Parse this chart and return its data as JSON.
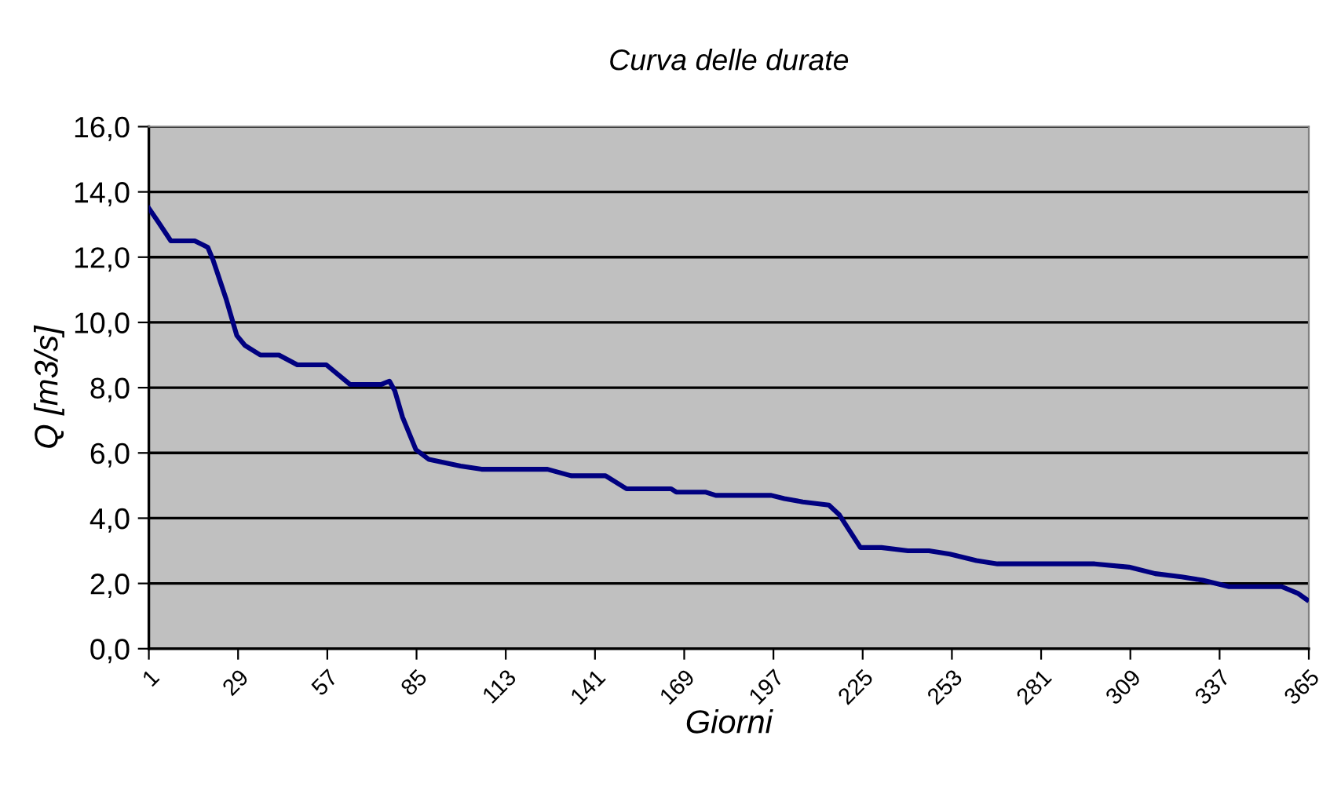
{
  "chart_data": {
    "type": "line",
    "title": "Curva delle durate",
    "xlabel": "Giorni",
    "ylabel": "Q [m3/s]",
    "series": [
      {
        "color": "#000080",
        "x": [
          1,
          3.8,
          7.9,
          15.4,
          19.5,
          21.2,
          25.3,
          28.6,
          31.1,
          36,
          41.8,
          47.6,
          56.7,
          64.1,
          74,
          76.5,
          78.2,
          80.6,
          84.8,
          88.9,
          98.8,
          105.4,
          126.1,
          133.5,
          144.3,
          150.9,
          164.9,
          166.5,
          175.6,
          178.9,
          196.3,
          200.4,
          206.2,
          214.4,
          217.7,
          224.3,
          229.3,
          230.9,
          239.2,
          245.8,
          252.4,
          260.7,
          267.3,
          297.8,
          308.6,
          316.8,
          325.1,
          331.7,
          340,
          356.5,
          361.5,
          364.4
        ],
        "values": [
          13.5,
          13.1,
          12.5,
          12.5,
          12.3,
          11.9,
          10.7,
          9.6,
          9.3,
          9.0,
          9.0,
          8.7,
          8.7,
          8.1,
          8.1,
          8.2,
          7.9,
          7.1,
          6.1,
          5.8,
          5.6,
          5.5,
          5.5,
          5.3,
          5.3,
          4.9,
          4.9,
          4.8,
          4.8,
          4.7,
          4.7,
          4.6,
          4.5,
          4.4,
          4.1,
          3.1,
          3.1,
          3.1,
          3.0,
          3.0,
          2.9,
          2.7,
          2.6,
          2.6,
          2.5,
          2.3,
          2.2,
          2.1,
          1.9,
          1.9,
          1.7,
          1.5
        ]
      }
    ],
    "xlim": [
      1,
      365
    ],
    "xticks": [
      1,
      29,
      57,
      85,
      113,
      141,
      169,
      197,
      225,
      253,
      281,
      309,
      337,
      365
    ],
    "ylim": [
      0,
      16
    ],
    "yticks": [
      {
        "value": 0,
        "label": "0,0"
      },
      {
        "value": 2,
        "label": "2,0"
      },
      {
        "value": 4,
        "label": "4,0"
      },
      {
        "value": 6,
        "label": "6,0"
      },
      {
        "value": 8,
        "label": "8,0"
      },
      {
        "value": 10,
        "label": "10,0"
      },
      {
        "value": 12,
        "label": "12,0"
      },
      {
        "value": 14,
        "label": "14,0"
      },
      {
        "value": 16,
        "label": "16,0"
      }
    ],
    "grid": "y",
    "line_style": "solid",
    "marker": "none"
  }
}
